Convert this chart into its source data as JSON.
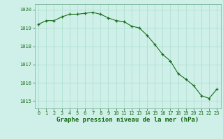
{
  "x": [
    0,
    1,
    2,
    3,
    4,
    5,
    6,
    7,
    8,
    9,
    10,
    11,
    12,
    13,
    14,
    15,
    16,
    17,
    18,
    19,
    20,
    21,
    22,
    23
  ],
  "y": [
    1019.2,
    1019.4,
    1019.4,
    1019.6,
    1019.75,
    1019.75,
    1019.8,
    1019.85,
    1019.75,
    1019.55,
    1019.4,
    1019.35,
    1019.1,
    1019.0,
    1018.6,
    1018.1,
    1017.55,
    1017.2,
    1016.5,
    1016.2,
    1015.85,
    1015.3,
    1015.15,
    1015.65
  ],
  "line_color": "#1a6b1a",
  "marker": "+",
  "marker_color": "#1a6b1a",
  "bg_color": "#cef0e8",
  "grid_color": "#aaddcc",
  "xlabel": "Graphe pression niveau de la mer (hPa)",
  "ylim": [
    1014.6,
    1020.3
  ],
  "xlim": [
    -0.5,
    23.5
  ],
  "yticks": [
    1015,
    1016,
    1017,
    1018,
    1019,
    1020
  ],
  "xticks": [
    0,
    1,
    2,
    3,
    4,
    5,
    6,
    7,
    8,
    9,
    10,
    11,
    12,
    13,
    14,
    15,
    16,
    17,
    18,
    19,
    20,
    21,
    22,
    23
  ],
  "tick_color": "#1a6b1a",
  "title_color": "#1a6b1a",
  "title_fontsize": 6.5,
  "tick_fontsize": 5.0,
  "spine_color": "#6aaa88"
}
